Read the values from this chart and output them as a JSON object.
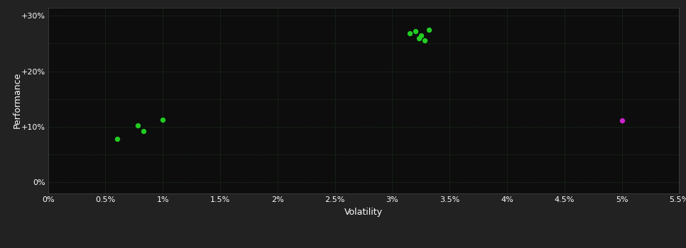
{
  "background_color": "#222222",
  "plot_bg_color": "#0d0d0d",
  "grid_color": "#2d5a2d",
  "text_color": "#ffffff",
  "xlabel": "Volatility",
  "ylabel": "Performance",
  "x_ticks": [
    0.0,
    0.005,
    0.01,
    0.015,
    0.02,
    0.025,
    0.03,
    0.035,
    0.04,
    0.045,
    0.05,
    0.055
  ],
  "x_tick_labels": [
    "0%",
    "0.5%",
    "1%",
    "1.5%",
    "2%",
    "2.5%",
    "3%",
    "3.5%",
    "4%",
    "4.5%",
    "5%",
    "5.5%"
  ],
  "y_ticks": [
    0.0,
    0.1,
    0.2,
    0.3
  ],
  "y_tick_labels": [
    "0%",
    "+10%",
    "+20%",
    "+30%"
  ],
  "y_minor_ticks": [
    0.0,
    0.05,
    0.1,
    0.15,
    0.2,
    0.25,
    0.3
  ],
  "xlim": [
    0.0,
    0.055
  ],
  "ylim": [
    -0.02,
    0.315
  ],
  "green_points": [
    [
      0.006,
      0.078
    ],
    [
      0.0078,
      0.103
    ],
    [
      0.0083,
      0.092
    ],
    [
      0.01,
      0.113
    ],
    [
      0.0315,
      0.268
    ],
    [
      0.032,
      0.272
    ],
    [
      0.0323,
      0.26
    ],
    [
      0.0325,
      0.264
    ],
    [
      0.0328,
      0.256
    ],
    [
      0.0332,
      0.275
    ]
  ],
  "magenta_points": [
    [
      0.05,
      0.112
    ]
  ],
  "green_color": "#22cc22",
  "magenta_color": "#cc22cc",
  "marker_size": 28
}
